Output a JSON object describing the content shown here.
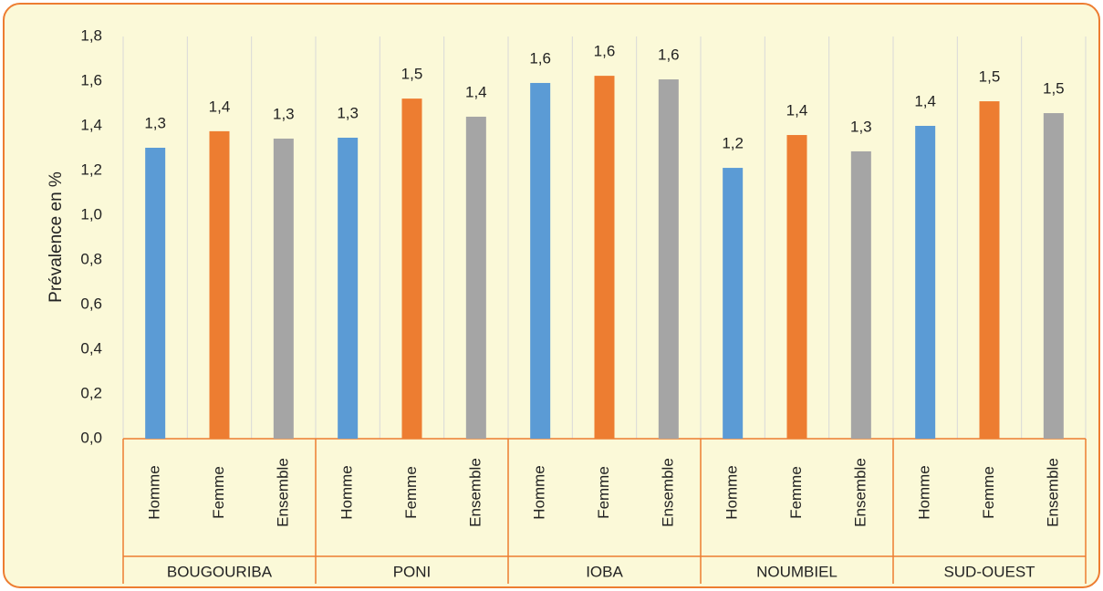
{
  "chart_data": {
    "type": "bar",
    "y_label": "Prévalence en %",
    "categories": [
      "Homme",
      "Femme",
      "Ensemble",
      "Homme",
      "Femme",
      "Ensemble",
      "Homme",
      "Femme",
      "Ensemble",
      "Homme",
      "Femme",
      "Ensemble",
      "Homme",
      "Femme",
      "Ensemble"
    ],
    "groups": [
      {
        "name": "BOUGOURIBA",
        "size": 3
      },
      {
        "name": "PONI",
        "size": 3
      },
      {
        "name": "IOBA",
        "size": 3
      },
      {
        "name": "NOUMBIEL",
        "size": 3
      },
      {
        "name": "SUD-OUEST",
        "size": 3
      }
    ],
    "values": [
      1.302,
      1.376,
      1.343,
      1.347,
      1.522,
      1.441,
      1.592,
      1.624,
      1.608,
      1.212,
      1.359,
      1.286,
      1.4,
      1.51,
      1.457
    ],
    "value_labels": [
      "1,3",
      "1,4",
      "1,3",
      "1,3",
      "1,5",
      "1,4",
      "1,6",
      "1,6",
      "1,6",
      "1,2",
      "1,4",
      "1,3",
      "1,4",
      "1,5",
      "1,5"
    ],
    "colors": [
      "#5b9bd5",
      "#ed7d31",
      "#a5a5a5",
      "#5b9bd5",
      "#ed7d31",
      "#a5a5a5",
      "#5b9bd5",
      "#ed7d31",
      "#a5a5a5",
      "#5b9bd5",
      "#ed7d31",
      "#a5a5a5",
      "#5b9bd5",
      "#ed7d31",
      "#a5a5a5"
    ],
    "ylim": [
      0,
      1.8
    ],
    "yticks": [
      {
        "value": 0,
        "label": "0,0"
      },
      {
        "value": 0.2,
        "label": "0,2"
      },
      {
        "value": 0.4,
        "label": "0,4"
      },
      {
        "value": 0.6,
        "label": "0,6"
      },
      {
        "value": 0.8,
        "label": "0,8"
      },
      {
        "value": 1.0,
        "label": "1,0"
      },
      {
        "value": 1.2,
        "label": "1,2"
      },
      {
        "value": 1.4,
        "label": "1,4"
      },
      {
        "value": 1.6,
        "label": "1,6"
      },
      {
        "value": 1.8,
        "label": "1,8"
      }
    ],
    "grid": true
  }
}
